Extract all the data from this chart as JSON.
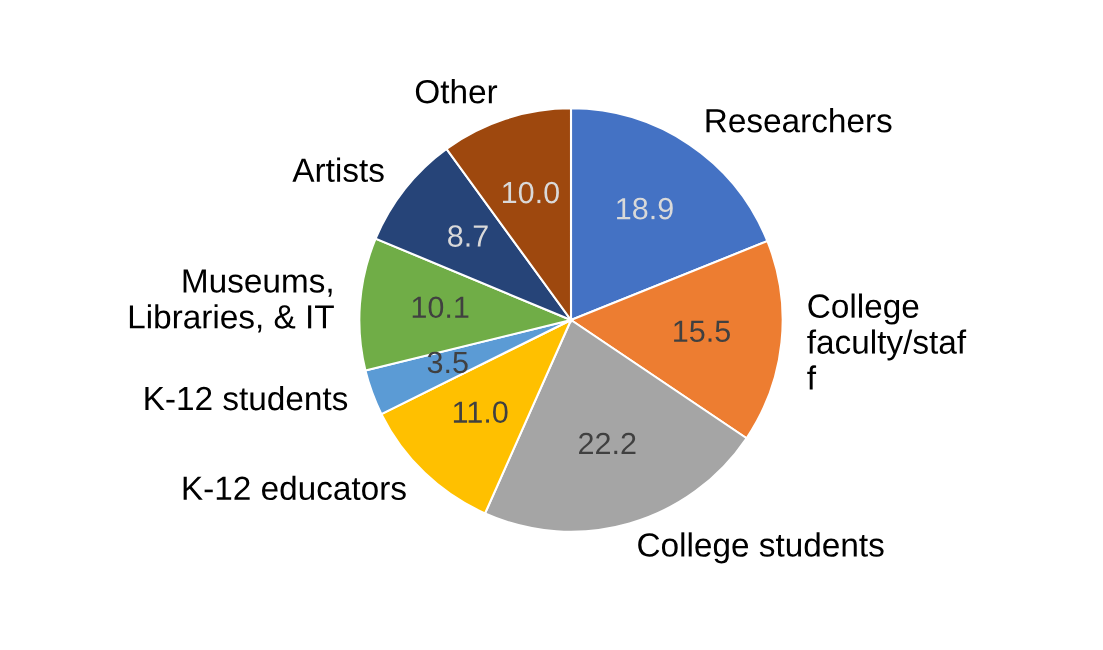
{
  "chart_data": {
    "type": "pie",
    "categories": [
      "Researchers",
      "College\nfaculty/staf\nf",
      "College students",
      "K-12 educators",
      "K-12 students",
      "Museums,\nLibraries, & IT",
      "Artists",
      "Other"
    ],
    "values": [
      18.9,
      15.5,
      22.2,
      11.0,
      3.5,
      10.1,
      8.7,
      10.0
    ],
    "colors": [
      "#4472c4",
      "#ed7d31",
      "#a5a5a5",
      "#ffc000",
      "#5b9bd5",
      "#70ad47",
      "#264478",
      "#9e480e"
    ],
    "value_labels": [
      "18.9",
      "15.5",
      "22.2",
      "11.0",
      "3.5",
      "10.1",
      "8.7",
      "10.0"
    ],
    "legend": false
  }
}
